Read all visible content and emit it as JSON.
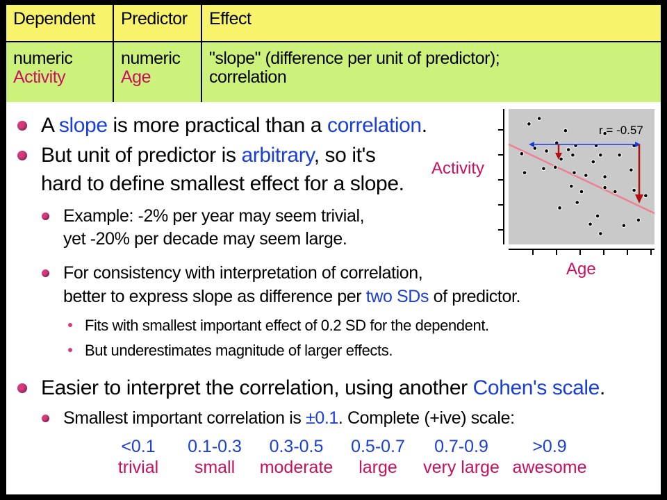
{
  "table": {
    "headers": [
      "Dependent",
      "Predictor",
      "Effect"
    ],
    "row": {
      "dep_type": "numeric",
      "dep_name": "Activity",
      "pred_type": "numeric",
      "pred_name": "Age",
      "effect_line1": "\"slope\" (difference per unit of predictor);",
      "effect_line2": "correlation"
    }
  },
  "bullets": {
    "b1": {
      "pre": "A ",
      "k1": "slope",
      "mid": " is more practical than a ",
      "k2": "correlation",
      "post": "."
    },
    "b2": {
      "pre": "But unit of predictor is ",
      "k1": "arbitrary",
      "post": ", so it's",
      "line2": "hard to define smallest effect for a slope."
    },
    "b2a": {
      "line1": "Example: -2% per year may seem trivial,",
      "line2": "yet -20% per decade may seem large."
    },
    "b2b": {
      "line1": "For consistency with interpretation of correlation,",
      "pre": "better to express slope as difference per ",
      "k1": "two SDs",
      "post": " of predictor."
    },
    "b2b1": "Fits with smallest important effect of 0.2 SD for the dependent.",
    "b2b2": "But underestimates magnitude of larger effects.",
    "b3": {
      "pre": "Easier to interpret the correlation, using another ",
      "k1": "Cohen's scale",
      "post": "."
    },
    "b3a": {
      "pre": "Smallest important correlation is ",
      "k1": "±0.1",
      "post": ".  Complete (+ive) scale:"
    }
  },
  "scale": [
    {
      "value": "<0.1",
      "name": "trivial"
    },
    {
      "value": "0.1-0.3",
      "name": "small"
    },
    {
      "value": "0.3-0.5",
      "name": "moderate"
    },
    {
      "value": "0.5-0.7",
      "name": "large"
    },
    {
      "value": "0.7-0.9",
      "name": "very large"
    },
    {
      "value": ">0.9",
      "name": "awesome"
    }
  ],
  "chart_data": {
    "type": "scatter",
    "annotation": "r = -0.57",
    "xlabel": "Age",
    "ylabel": "Activity",
    "xlim": [
      0,
      10
    ],
    "ylim": [
      0,
      10
    ],
    "points": [
      [
        1.4,
        8.9
      ],
      [
        2.1,
        9.3
      ],
      [
        3.9,
        8.4
      ],
      [
        0.9,
        6.7
      ],
      [
        1.8,
        7.1
      ],
      [
        3.3,
        7.5
      ],
      [
        4.1,
        7.0
      ],
      [
        4.6,
        7.3
      ],
      [
        6.0,
        7.3
      ],
      [
        6.6,
        8.2
      ],
      [
        6.3,
        6.6
      ],
      [
        2.6,
        6.9
      ],
      [
        3.6,
        6.3
      ],
      [
        4.4,
        6.6
      ],
      [
        5.8,
        6.1
      ],
      [
        7.6,
        6.6
      ],
      [
        8.6,
        7.3
      ],
      [
        1.1,
        5.3
      ],
      [
        2.4,
        5.6
      ],
      [
        3.2,
        5.7
      ],
      [
        4.5,
        5.3
      ],
      [
        5.3,
        5.1
      ],
      [
        6.6,
        5.0
      ],
      [
        8.4,
        5.5
      ],
      [
        4.3,
        4.3
      ],
      [
        5.0,
        3.9
      ],
      [
        6.6,
        4.2
      ],
      [
        7.3,
        3.9
      ],
      [
        8.6,
        4.0
      ],
      [
        9.4,
        3.6
      ],
      [
        4.7,
        3.1
      ],
      [
        3.5,
        2.7
      ],
      [
        6.1,
        2.1
      ],
      [
        5.6,
        1.5
      ],
      [
        7.9,
        1.4
      ],
      [
        8.9,
        1.8
      ],
      [
        6.3,
        0.8
      ]
    ],
    "regression": {
      "x": [
        0,
        10
      ],
      "y": [
        7.4,
        2.3
      ]
    }
  }
}
